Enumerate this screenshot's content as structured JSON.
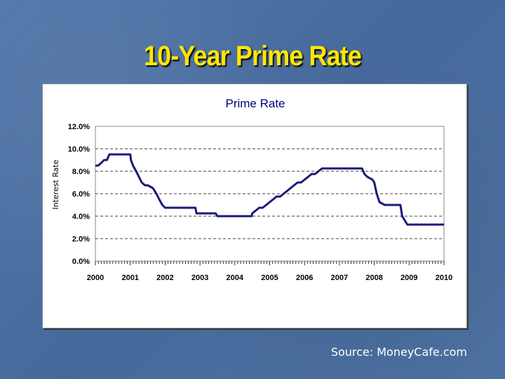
{
  "slide": {
    "title": "10-Year Prime Rate",
    "source": "Source: MoneyCafe.com"
  },
  "colors": {
    "title": "#ffe600",
    "line": "#1a1a7a",
    "grid": "#000000"
  },
  "chart_data": {
    "type": "line",
    "title": "Prime Rate",
    "xlabel": "",
    "ylabel": "Interest Rate",
    "xlim": [
      2000,
      2010
    ],
    "ylim": [
      0,
      12
    ],
    "x_ticks": [
      "2000",
      "2001",
      "2002",
      "2003",
      "2004",
      "2005",
      "2006",
      "2007",
      "2008",
      "2009",
      "2010"
    ],
    "y_ticks": [
      "0.0%",
      "2.0%",
      "4.0%",
      "6.0%",
      "8.0%",
      "10.0%",
      "12.0%"
    ],
    "y_tick_values": [
      0,
      2,
      4,
      6,
      8,
      10,
      12
    ],
    "grid": "horizontal dashed",
    "series": [
      {
        "x": [
          2000.0,
          2000.08,
          2000.17,
          2000.25,
          2000.33,
          2000.4,
          2000.45,
          2001.0,
          2001.02,
          2001.08,
          2001.17,
          2001.25,
          2001.33,
          2001.42,
          2001.5,
          2001.65,
          2001.75,
          2001.83,
          2001.92,
          2002.0,
          2002.87,
          2002.9,
          2003.0,
          2003.45,
          2003.5,
          2004.0,
          2004.48,
          2004.5,
          2004.6,
          2004.7,
          2004.8,
          2004.9,
          2005.0,
          2005.1,
          2005.2,
          2005.3,
          2005.4,
          2005.5,
          2005.6,
          2005.7,
          2005.8,
          2005.9,
          2006.0,
          2006.1,
          2006.2,
          2006.3,
          2006.4,
          2006.5,
          2007.0,
          2007.65,
          2007.72,
          2007.8,
          2007.95,
          2008.0,
          2008.07,
          2008.15,
          2008.3,
          2008.75,
          2008.8,
          2008.95,
          2009.0,
          2010.0
        ],
        "y": [
          8.5,
          8.5,
          8.75,
          9.0,
          9.0,
          9.5,
          9.5,
          9.5,
          9.0,
          8.5,
          8.0,
          7.5,
          7.0,
          6.75,
          6.75,
          6.5,
          6.0,
          5.5,
          5.0,
          4.75,
          4.75,
          4.25,
          4.25,
          4.25,
          4.0,
          4.0,
          4.0,
          4.25,
          4.5,
          4.75,
          4.75,
          5.0,
          5.25,
          5.5,
          5.75,
          5.75,
          6.0,
          6.25,
          6.5,
          6.75,
          7.0,
          7.0,
          7.25,
          7.5,
          7.75,
          7.75,
          8.0,
          8.25,
          8.25,
          8.25,
          7.75,
          7.5,
          7.25,
          7.0,
          6.0,
          5.25,
          5.0,
          5.0,
          4.0,
          3.25,
          3.25,
          3.25
        ]
      }
    ]
  }
}
